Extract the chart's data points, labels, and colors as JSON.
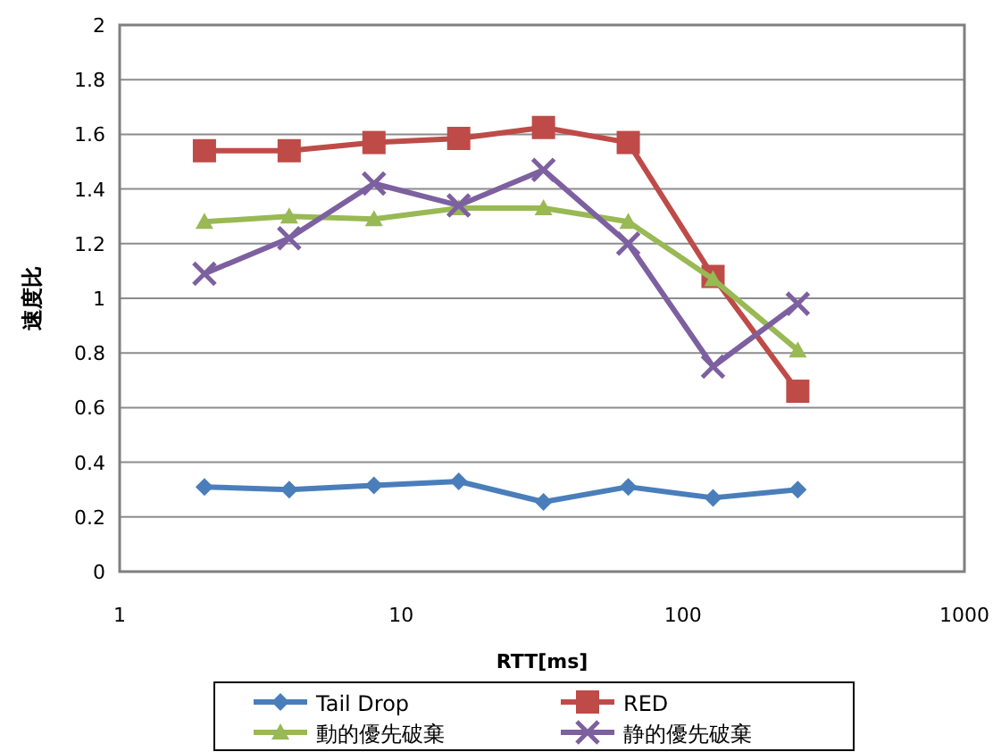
{
  "chart_data": {
    "type": "line",
    "xlabel": "RTT[ms]",
    "ylabel": "速度比",
    "log": "x",
    "xlim": [
      1,
      1000
    ],
    "xticks": [
      1,
      10,
      100,
      1000
    ],
    "ylim": [
      0,
      2
    ],
    "yticks": [
      0,
      0.2,
      0.4,
      0.6,
      0.8,
      1,
      1.2,
      1.4,
      1.6,
      1.8,
      2
    ],
    "grid": "y",
    "legend": "bottom",
    "x": [
      2,
      4,
      8,
      16,
      32,
      64,
      128,
      256
    ],
    "series": [
      {
        "name": "Tail Drop",
        "color": "#4a7ebb",
        "marker": "diamond",
        "values": [
          0.31,
          0.3,
          0.315,
          0.33,
          0.255,
          0.31,
          0.27,
          0.3
        ]
      },
      {
        "name": "RED",
        "color": "#be4b48",
        "marker": "square",
        "values": [
          1.54,
          1.54,
          1.57,
          1.585,
          1.625,
          1.57,
          1.08,
          0.66
        ]
      },
      {
        "name": "動的優先破棄",
        "color": "#98b954",
        "marker": "triangle",
        "values": [
          1.28,
          1.3,
          1.29,
          1.33,
          1.33,
          1.28,
          1.07,
          0.81
        ]
      },
      {
        "name": "静的優先破棄",
        "color": "#7d60a0",
        "marker": "cross",
        "values": [
          1.09,
          1.22,
          1.42,
          1.34,
          1.47,
          1.2,
          0.75,
          0.98
        ]
      }
    ]
  }
}
